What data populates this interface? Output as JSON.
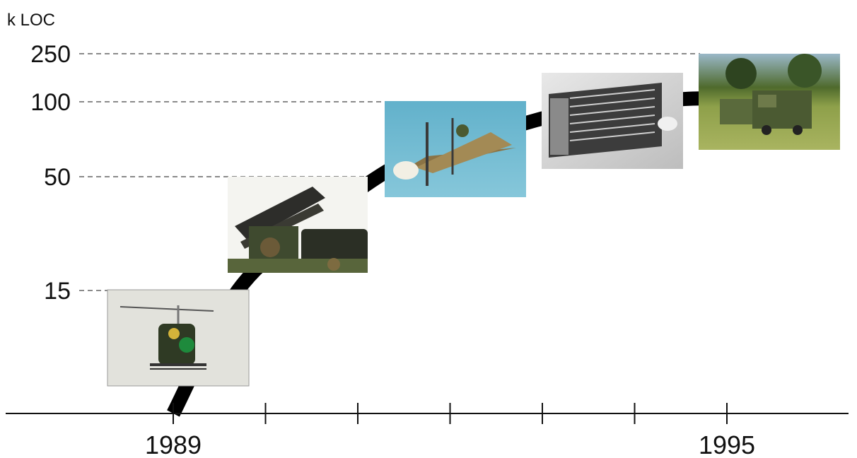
{
  "chart_data": {
    "type": "line",
    "title": "",
    "ylabel": "k LOC",
    "xlabel": "",
    "x_tick_labels": [
      {
        "x": 1989,
        "label": "1989"
      },
      {
        "x": 1995,
        "label": "1995"
      }
    ],
    "x_ticks": [
      1989,
      1990,
      1991,
      1992,
      1993,
      1994,
      1995
    ],
    "y_ticks": [
      15,
      50,
      100,
      250
    ],
    "y_scale": "nonlinear (ticks 15, 50, 100, 250)",
    "grid": "dashed reference lines at y ticks",
    "series": [
      {
        "points": [
          {
            "x": 1989,
            "y": 0
          },
          {
            "x": 1989.7,
            "y": 15
          },
          {
            "x": 1990.5,
            "y": 35
          },
          {
            "x": 1991.5,
            "y": 60
          },
          {
            "x": 1992.5,
            "y": 80
          },
          {
            "x": 1993.5,
            "y": 96
          },
          {
            "x": 1994.5,
            "y": 108
          },
          {
            "x": 1995.25,
            "y": 112
          }
        ]
      }
    ],
    "annotations": [
      {
        "picture": "helicopter-drone",
        "x": 1989,
        "y": 15
      },
      {
        "picture": "missile-launcher",
        "x": 1990,
        "y": 50
      },
      {
        "picture": "delta-wing-drone",
        "x": 1992,
        "y": 100
      },
      {
        "picture": "electronics-rack",
        "x": 1993.5,
        "y": 150
      },
      {
        "picture": "military-truck",
        "x": 1994.8,
        "y": 250
      }
    ]
  },
  "colors": {
    "curve": "#000000",
    "axis": "#111111",
    "grid": "#444444",
    "photo_sky": "#6fb8cf",
    "camouflage_green": "#4a5a32",
    "grass": "#8ea04a"
  }
}
